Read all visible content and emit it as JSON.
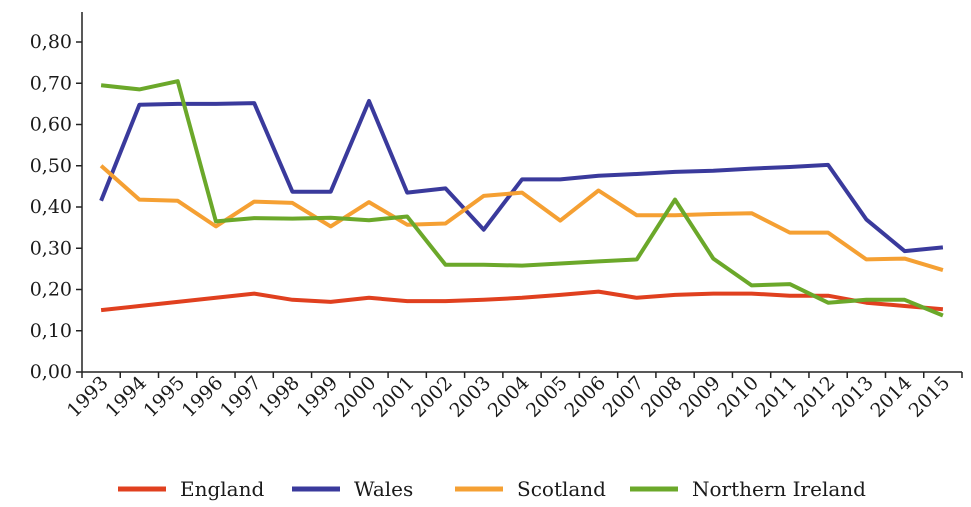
{
  "chart_data": {
    "type": "line",
    "x": [
      "1993",
      "1994",
      "1995",
      "1996",
      "1997",
      "1998",
      "1999",
      "2000",
      "2001",
      "2002",
      "2003",
      "2004",
      "2005",
      "2006",
      "2007",
      "2008",
      "2009",
      "2010",
      "2011",
      "2012",
      "2013",
      "2014",
      "2015"
    ],
    "ylim": [
      0,
      0.8
    ],
    "yticks": [
      "0,00",
      "0,10",
      "0,20",
      "0,30",
      "0,40",
      "0,50",
      "0,60",
      "0,70",
      "0,80"
    ],
    "ytick_values": [
      0,
      0.1,
      0.2,
      0.3,
      0.4,
      0.5,
      0.6,
      0.7,
      0.8
    ],
    "grid": false,
    "legend_position": "bottom",
    "series": [
      {
        "name": "England",
        "color": "#e0401f",
        "values": [
          0.15,
          0.16,
          0.17,
          0.18,
          0.19,
          0.175,
          0.17,
          0.18,
          0.172,
          0.172,
          0.175,
          0.18,
          0.187,
          0.195,
          0.18,
          0.187,
          0.19,
          0.19,
          0.185,
          0.185,
          0.168,
          0.16,
          0.152
        ]
      },
      {
        "name": "Wales",
        "color": "#3a3a9c",
        "values": [
          0.415,
          0.648,
          0.65,
          0.65,
          0.652,
          0.437,
          0.437,
          0.657,
          0.435,
          0.445,
          0.345,
          0.467,
          0.467,
          0.476,
          0.48,
          0.485,
          0.488,
          0.493,
          0.497,
          0.502,
          0.37,
          0.293,
          0.302
        ]
      },
      {
        "name": "Scotland",
        "color": "#f5a033",
        "values": [
          0.5,
          0.418,
          0.415,
          0.353,
          0.413,
          0.41,
          0.353,
          0.412,
          0.357,
          0.36,
          0.427,
          0.435,
          0.367,
          0.44,
          0.38,
          0.38,
          0.383,
          0.385,
          0.338,
          0.338,
          0.273,
          0.275,
          0.247
        ]
      },
      {
        "name": "Northern Ireland",
        "color": "#6ba82a",
        "values": [
          0.695,
          0.685,
          0.705,
          0.365,
          0.373,
          0.372,
          0.374,
          0.368,
          0.377,
          0.26,
          0.26,
          0.258,
          0.263,
          0.268,
          0.273,
          0.418,
          0.275,
          0.21,
          0.213,
          0.168,
          0.175,
          0.175,
          0.137
        ]
      }
    ]
  }
}
